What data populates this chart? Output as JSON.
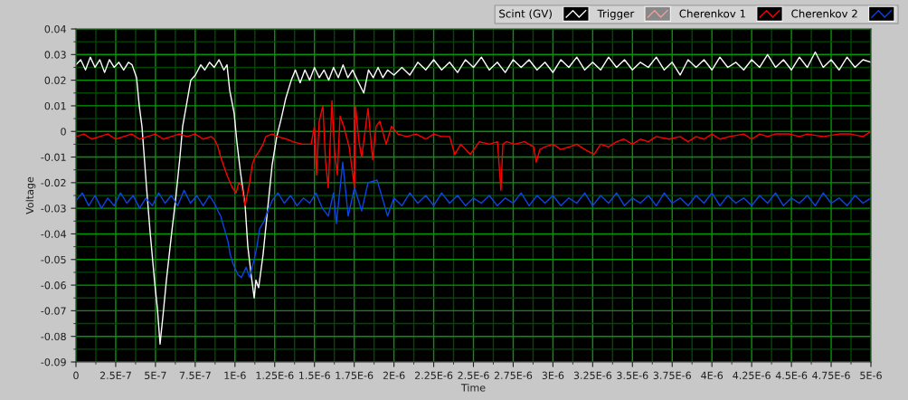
{
  "chart_data": {
    "type": "line",
    "xlabel": "Time",
    "ylabel": "Voltage",
    "xlim": [
      0,
      5e-06
    ],
    "ylim": [
      -0.09,
      0.04
    ],
    "xticks": [
      0,
      {
        "value": 1.25e-07,
        "label": null
      },
      {
        "value": 2.5e-07,
        "label": "2.5E-7"
      },
      {
        "value": 3.75e-07,
        "label": null
      },
      {
        "value": 5e-07,
        "label": "5E-7"
      },
      {
        "value": 6.25e-07,
        "label": null
      },
      {
        "value": 7.5e-07,
        "label": "7.5E-7"
      },
      {
        "value": 8.75e-07,
        "label": null
      },
      {
        "value": 1e-06,
        "label": "1E-6"
      },
      {
        "value": 1.125e-06,
        "label": null
      },
      {
        "value": 1.25e-06,
        "label": "1.25E-6"
      },
      {
        "value": 1.375e-06,
        "label": null
      },
      {
        "value": 1.5e-06,
        "label": "1.5E-6"
      },
      {
        "value": 1.625e-06,
        "label": null
      },
      {
        "value": 1.75e-06,
        "label": "1.75E-6"
      },
      {
        "value": 1.875e-06,
        "label": null
      },
      {
        "value": 2e-06,
        "label": "2E-6"
      },
      {
        "value": 2.125e-06,
        "label": null
      },
      {
        "value": 2.25e-06,
        "label": "2.25E-6"
      },
      {
        "value": 2.375e-06,
        "label": null
      },
      {
        "value": 2.5e-06,
        "label": "2.5E-6"
      },
      {
        "value": 2.625e-06,
        "label": null
      },
      {
        "value": 2.75e-06,
        "label": "2.75E-6"
      },
      {
        "value": 2.875e-06,
        "label": null
      },
      {
        "value": 3e-06,
        "label": "3E-6"
      },
      {
        "value": 3.125e-06,
        "label": null
      },
      {
        "value": 3.25e-06,
        "label": "3.25E-6"
      },
      {
        "value": 3.375e-06,
        "label": null
      },
      {
        "value": 3.5e-06,
        "label": "3.5E-6"
      },
      {
        "value": 3.625e-06,
        "label": null
      },
      {
        "value": 3.75e-06,
        "label": "3.75E-6"
      },
      {
        "value": 3.875e-06,
        "label": null
      },
      {
        "value": 4e-06,
        "label": "4E-6"
      },
      {
        "value": 4.125e-06,
        "label": null
      },
      {
        "value": 4.25e-06,
        "label": "4.25E-6"
      },
      {
        "value": 4.375e-06,
        "label": null
      },
      {
        "value": 4.5e-06,
        "label": "4.5E-6"
      },
      {
        "value": 4.625e-06,
        "label": null
      },
      {
        "value": 4.75e-06,
        "label": "4.75E-6"
      },
      {
        "value": 4.875e-06,
        "label": null
      },
      {
        "value": 5e-06,
        "label": "5E-6"
      }
    ],
    "yticks": [
      0.04,
      {
        "value": 0.035,
        "label": null
      },
      0.03,
      {
        "value": 0.025,
        "label": null
      },
      0.02,
      {
        "value": 0.015,
        "label": null
      },
      0.01,
      {
        "value": 0.005,
        "label": null
      },
      0,
      {
        "value": -0.005,
        "label": null
      },
      -0.01,
      {
        "value": -0.015,
        "label": null
      },
      -0.02,
      {
        "value": -0.025,
        "label": null
      },
      -0.03,
      {
        "value": -0.035,
        "label": null
      },
      -0.04,
      {
        "value": -0.045,
        "label": null
      },
      -0.05,
      {
        "value": -0.055,
        "label": null
      },
      -0.06,
      {
        "value": -0.065,
        "label": null
      },
      -0.07,
      {
        "value": -0.075,
        "label": null
      },
      -0.08,
      {
        "value": -0.085,
        "label": null
      },
      -0.09
    ],
    "grid": true,
    "legend": "top right",
    "series": [
      {
        "name": "Scint (GV)",
        "color": "#ffffff",
        "x": [
          0,
          3e-08,
          6e-08,
          9e-08,
          1.2e-07,
          1.5e-07,
          1.8e-07,
          2.1e-07,
          2.4e-07,
          2.7e-07,
          3e-07,
          3.3e-07,
          3.53e-07,
          3.81e-07,
          3.98e-07,
          4.15e-07,
          4.44e-07,
          4.66e-07,
          4.95e-07,
          5.12e-07,
          5.29e-07,
          5.52e-07,
          5.69e-07,
          6.03e-07,
          6.26e-07,
          6.54e-07,
          6.71e-07,
          6.94e-07,
          7.22e-07,
          7.51e-07,
          7.85e-07,
          8.1e-07,
          8.4e-07,
          8.7e-07,
          9e-07,
          9.3e-07,
          9.5e-07,
          9.67e-07,
          9.95e-07,
          1.012e-06,
          1.035e-06,
          1.064e-06,
          1.081e-06,
          1.104e-06,
          1.121e-06,
          1.132e-06,
          1.149e-06,
          1.177e-06,
          1.206e-06,
          1.234e-06,
          1.263e-06,
          1.291e-06,
          1.32e-06,
          1.354e-06,
          1.38e-06,
          1.41e-06,
          1.44e-06,
          1.47e-06,
          1.5e-06,
          1.53e-06,
          1.56e-06,
          1.59e-06,
          1.62e-06,
          1.65e-06,
          1.68e-06,
          1.71e-06,
          1.74e-06,
          1.77e-06,
          1.81e-06,
          1.84e-06,
          1.87e-06,
          1.9e-06,
          1.93e-06,
          1.96e-06,
          2e-06,
          2.05e-06,
          2.1e-06,
          2.15e-06,
          2.2e-06,
          2.25e-06,
          2.3e-06,
          2.35e-06,
          2.4e-06,
          2.45e-06,
          2.5e-06,
          2.55e-06,
          2.6e-06,
          2.65e-06,
          2.7e-06,
          2.75e-06,
          2.8e-06,
          2.85e-06,
          2.9e-06,
          2.95e-06,
          3e-06,
          3.05e-06,
          3.1e-06,
          3.15e-06,
          3.2e-06,
          3.25e-06,
          3.3e-06,
          3.35e-06,
          3.4e-06,
          3.45e-06,
          3.5e-06,
          3.55e-06,
          3.6e-06,
          3.65e-06,
          3.7e-06,
          3.75e-06,
          3.8e-06,
          3.85e-06,
          3.9e-06,
          3.95e-06,
          4e-06,
          4.05e-06,
          4.1e-06,
          4.15e-06,
          4.2e-06,
          4.25e-06,
          4.3e-06,
          4.35e-06,
          4.4e-06,
          4.45e-06,
          4.5e-06,
          4.55e-06,
          4.6e-06,
          4.65e-06,
          4.7e-06,
          4.75e-06,
          4.8e-06,
          4.85e-06,
          4.9e-06,
          4.95e-06,
          5e-06
        ],
        "values": [
          0.026,
          0.028,
          0.024,
          0.029,
          0.025,
          0.028,
          0.023,
          0.028,
          0.025,
          0.027,
          0.024,
          0.027,
          0.026,
          0.021,
          0.01,
          0.002,
          -0.022,
          -0.039,
          -0.059,
          -0.069,
          -0.083,
          -0.069,
          -0.058,
          -0.039,
          -0.027,
          -0.01,
          0.002,
          0.01,
          0.02,
          0.022,
          0.026,
          0.024,
          0.027,
          0.025,
          0.028,
          0.024,
          0.026,
          0.016,
          0.007,
          -0.004,
          -0.016,
          -0.029,
          -0.045,
          -0.057,
          -0.065,
          -0.058,
          -0.061,
          -0.048,
          -0.03,
          -0.013,
          -0.002,
          0.005,
          0.013,
          0.02,
          0.024,
          0.019,
          0.024,
          0.02,
          0.025,
          0.021,
          0.024,
          0.02,
          0.025,
          0.021,
          0.026,
          0.021,
          0.024,
          0.02,
          0.015,
          0.024,
          0.021,
          0.025,
          0.021,
          0.024,
          0.022,
          0.025,
          0.022,
          0.027,
          0.024,
          0.028,
          0.024,
          0.027,
          0.023,
          0.028,
          0.025,
          0.029,
          0.024,
          0.027,
          0.023,
          0.028,
          0.025,
          0.028,
          0.024,
          0.027,
          0.023,
          0.028,
          0.025,
          0.029,
          0.024,
          0.027,
          0.024,
          0.029,
          0.025,
          0.028,
          0.024,
          0.027,
          0.025,
          0.029,
          0.024,
          0.027,
          0.022,
          0.028,
          0.025,
          0.028,
          0.024,
          0.029,
          0.025,
          0.027,
          0.024,
          0.028,
          0.025,
          0.03,
          0.025,
          0.028,
          0.024,
          0.029,
          0.025,
          0.031,
          0.025,
          0.028,
          0.024,
          0.029,
          0.025,
          0.028,
          0.027
        ]
      },
      {
        "name": "Trigger",
        "color": "#f0a0a0"
      },
      {
        "name": "Cherenkov 1",
        "color": "#ff0000",
        "x": [
          0,
          5e-08,
          1e-07,
          1.5e-07,
          2e-07,
          2.5e-07,
          3e-07,
          3.5e-07,
          4e-07,
          4.5e-07,
          5e-07,
          5.5e-07,
          6e-07,
          6.5e-07,
          7e-07,
          7.5e-07,
          8e-07,
          8.5e-07,
          8.7e-07,
          8.93e-07,
          9.1e-07,
          9.38e-07,
          9.56e-07,
          9.84e-07,
          1.007e-06,
          1.024e-06,
          1.041e-06,
          1.064e-06,
          1.092e-06,
          1.109e-06,
          1.126e-06,
          1.149e-06,
          1.177e-06,
          1.194e-06,
          1.234e-06,
          1.268e-06,
          1.325e-06,
          1.365e-06,
          1.422e-06,
          1.479e-06,
          1.5e-06,
          1.513e-06,
          1.53e-06,
          1.553e-06,
          1.57e-06,
          1.587e-06,
          1.61e-06,
          1.627e-06,
          1.644e-06,
          1.661e-06,
          1.684e-06,
          1.718e-06,
          1.752e-06,
          1.758e-06,
          1.78e-06,
          1.797e-06,
          1.837e-06,
          1.866e-06,
          1.888e-06,
          1.911e-06,
          1.951e-06,
          1.985e-06,
          2.025e-06,
          2.08e-06,
          2.14e-06,
          2.2e-06,
          2.25e-06,
          2.3e-06,
          2.35e-06,
          2.383e-06,
          2.42e-06,
          2.48e-06,
          2.537e-06,
          2.6e-06,
          2.651e-06,
          2.673e-06,
          2.685e-06,
          2.708e-06,
          2.76e-06,
          2.821e-06,
          2.878e-06,
          2.895e-06,
          2.918e-06,
          2.952e-06,
          3e-06,
          3.05e-06,
          3.106e-06,
          3.15e-06,
          3.2e-06,
          3.259e-06,
          3.3e-06,
          3.35e-06,
          3.4e-06,
          3.447e-06,
          3.5e-06,
          3.55e-06,
          3.6e-06,
          3.65e-06,
          3.731e-06,
          3.8e-06,
          3.85e-06,
          3.9e-06,
          3.95e-06,
          4e-06,
          4.05e-06,
          4.112e-06,
          4.2e-06,
          4.25e-06,
          4.3e-06,
          4.35e-06,
          4.4e-06,
          4.488e-06,
          4.55e-06,
          4.6e-06,
          4.7e-06,
          4.8e-06,
          4.869e-06,
          4.95e-06,
          5e-06
        ],
        "values": [
          -0.002,
          -0.001,
          -0.003,
          -0.002,
          -0.001,
          -0.003,
          -0.002,
          -0.001,
          -0.003,
          -0.002,
          -0.001,
          -0.003,
          -0.002,
          -0.001,
          -0.002,
          -0.001,
          -0.003,
          -0.002,
          -0.003,
          -0.006,
          -0.01,
          -0.015,
          -0.018,
          -0.022,
          -0.024,
          -0.02,
          -0.021,
          -0.029,
          -0.02,
          -0.013,
          -0.01,
          -0.008,
          -0.005,
          -0.002,
          -0.001,
          -0.002,
          -0.003,
          -0.004,
          -0.005,
          -0.005,
          0.002,
          -0.017,
          0.004,
          0.01,
          -0.012,
          -0.022,
          0.012,
          -0.008,
          -0.017,
          0.006,
          0.002,
          -0.006,
          -0.022,
          0.01,
          -0.004,
          -0.01,
          0.009,
          -0.011,
          0.002,
          0.004,
          -0.005,
          0.002,
          -0.001,
          -0.002,
          -0.001,
          -0.003,
          -0.001,
          -0.002,
          -0.002,
          -0.009,
          -0.005,
          -0.009,
          -0.004,
          -0.005,
          -0.004,
          -0.023,
          -0.005,
          -0.004,
          -0.005,
          -0.004,
          -0.006,
          -0.012,
          -0.007,
          -0.006,
          -0.005,
          -0.007,
          -0.006,
          -0.005,
          -0.007,
          -0.009,
          -0.005,
          -0.006,
          -0.004,
          -0.003,
          -0.005,
          -0.003,
          -0.004,
          -0.002,
          -0.003,
          -0.002,
          -0.004,
          -0.002,
          -0.003,
          -0.001,
          -0.003,
          -0.002,
          -0.001,
          -0.003,
          -0.001,
          -0.002,
          -0.001,
          -0.001,
          -0.002,
          -0.001,
          -0.002,
          -0.001,
          -0.001,
          -0.002,
          0.0
        ]
      },
      {
        "name": "Cherenkov 2",
        "color": "#0a46e6",
        "x": [
          0,
          4e-08,
          8e-08,
          1.2e-07,
          1.6e-07,
          2e-07,
          2.4e-07,
          2.8e-07,
          3.2e-07,
          3.6e-07,
          4e-07,
          4.4e-07,
          4.8e-07,
          5.2e-07,
          5.6e-07,
          6e-07,
          6.4e-07,
          6.8e-07,
          7.2e-07,
          7.6e-07,
          8e-07,
          8.4e-07,
          8.7e-07,
          8.93e-07,
          9.1e-07,
          9.38e-07,
          9.56e-07,
          9.7e-07,
          9.9e-07,
          1.02e-06,
          1.041e-06,
          1.07e-06,
          1.092e-06,
          1.121e-06,
          1.138e-06,
          1.155e-06,
          1.183e-06,
          1.206e-06,
          1.234e-06,
          1.27e-06,
          1.31e-06,
          1.35e-06,
          1.39e-06,
          1.43e-06,
          1.47e-06,
          1.51e-06,
          1.55e-06,
          1.587e-06,
          1.62e-06,
          1.638e-06,
          1.678e-06,
          1.712e-06,
          1.752e-06,
          1.797e-06,
          1.837e-06,
          1.894e-06,
          1.96e-06,
          2e-06,
          2.05e-06,
          2.1e-06,
          2.15e-06,
          2.2e-06,
          2.25e-06,
          2.3e-06,
          2.35e-06,
          2.4e-06,
          2.45e-06,
          2.5e-06,
          2.55e-06,
          2.6e-06,
          2.65e-06,
          2.7e-06,
          2.75e-06,
          2.8e-06,
          2.85e-06,
          2.9e-06,
          2.95e-06,
          3e-06,
          3.05e-06,
          3.1e-06,
          3.15e-06,
          3.2e-06,
          3.25e-06,
          3.3e-06,
          3.35e-06,
          3.4e-06,
          3.45e-06,
          3.5e-06,
          3.55e-06,
          3.6e-06,
          3.65e-06,
          3.7e-06,
          3.75e-06,
          3.8e-06,
          3.85e-06,
          3.9e-06,
          3.95e-06,
          4e-06,
          4.05e-06,
          4.1e-06,
          4.15e-06,
          4.2e-06,
          4.25e-06,
          4.3e-06,
          4.35e-06,
          4.4e-06,
          4.45e-06,
          4.5e-06,
          4.55e-06,
          4.6e-06,
          4.65e-06,
          4.7e-06,
          4.75e-06,
          4.8e-06,
          4.85e-06,
          4.9e-06,
          4.95e-06,
          5e-06
        ],
        "values": [
          -0.027,
          -0.024,
          -0.029,
          -0.025,
          -0.03,
          -0.026,
          -0.029,
          -0.024,
          -0.028,
          -0.025,
          -0.03,
          -0.026,
          -0.029,
          -0.024,
          -0.028,
          -0.025,
          -0.029,
          -0.023,
          -0.028,
          -0.025,
          -0.029,
          -0.025,
          -0.028,
          -0.031,
          -0.033,
          -0.039,
          -0.043,
          -0.048,
          -0.052,
          -0.056,
          -0.057,
          -0.053,
          -0.057,
          -0.05,
          -0.045,
          -0.038,
          -0.035,
          -0.031,
          -0.027,
          -0.024,
          -0.028,
          -0.025,
          -0.029,
          -0.026,
          -0.028,
          -0.024,
          -0.03,
          -0.033,
          -0.024,
          -0.036,
          -0.012,
          -0.033,
          -0.022,
          -0.031,
          -0.02,
          -0.019,
          -0.033,
          -0.026,
          -0.029,
          -0.024,
          -0.028,
          -0.025,
          -0.029,
          -0.024,
          -0.028,
          -0.025,
          -0.029,
          -0.026,
          -0.028,
          -0.025,
          -0.029,
          -0.026,
          -0.028,
          -0.024,
          -0.029,
          -0.025,
          -0.028,
          -0.025,
          -0.029,
          -0.026,
          -0.028,
          -0.024,
          -0.029,
          -0.025,
          -0.028,
          -0.024,
          -0.029,
          -0.026,
          -0.028,
          -0.025,
          -0.029,
          -0.024,
          -0.028,
          -0.026,
          -0.029,
          -0.025,
          -0.028,
          -0.024,
          -0.029,
          -0.025,
          -0.028,
          -0.026,
          -0.029,
          -0.025,
          -0.028,
          -0.024,
          -0.029,
          -0.026,
          -0.028,
          -0.025,
          -0.029,
          -0.024,
          -0.028,
          -0.026,
          -0.029,
          -0.025,
          -0.028,
          -0.026
        ]
      }
    ]
  }
}
